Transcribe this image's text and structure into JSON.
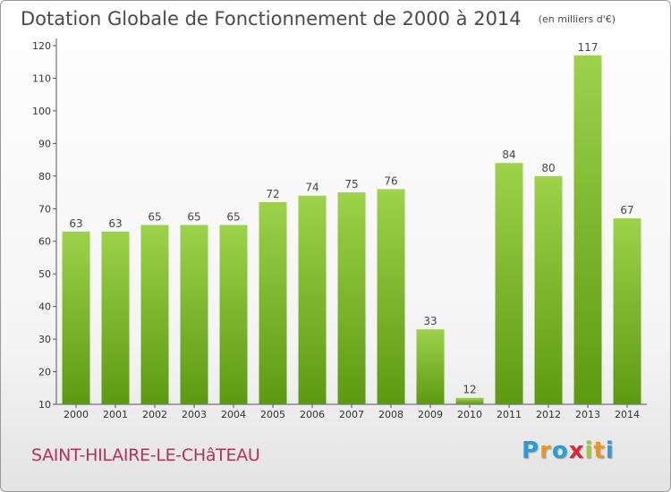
{
  "header": {
    "title": "Dotation Globale de Fonctionnement de 2000 à 2014",
    "subtitle": "(en milliers d'€)"
  },
  "footer": {
    "commune": "SAINT-HILAIRE-LE-CHâTEAU",
    "logo_letters": [
      "P",
      "r",
      "o",
      "x",
      "i",
      "t",
      "i"
    ],
    "logo_colors": [
      "#2f9ad6",
      "#e8952a",
      "#2f9ad6",
      "#d9283b",
      "#9bc83a",
      "#e8952a",
      "#2f9ad6"
    ]
  },
  "chart_data": {
    "type": "bar",
    "title": "Dotation Globale de Fonctionnement de 2000 à 2014",
    "subtitle": "(en milliers d'€)",
    "xlabel": "",
    "ylabel": "",
    "categories": [
      "2000",
      "2001",
      "2002",
      "2003",
      "2004",
      "2005",
      "2006",
      "2007",
      "2008",
      "2009",
      "2010",
      "2011",
      "2012",
      "2013",
      "2014"
    ],
    "values": [
      63,
      63,
      65,
      65,
      65,
      72,
      74,
      75,
      76,
      33,
      12,
      84,
      80,
      117,
      67
    ],
    "ylim": [
      10,
      120
    ],
    "yticks": [
      10,
      20,
      30,
      40,
      50,
      60,
      70,
      80,
      90,
      100,
      110,
      120
    ],
    "grid": false,
    "legend": "none",
    "bar_color_light": "#9dd24a",
    "bar_color_dark": "#5c9a12"
  }
}
